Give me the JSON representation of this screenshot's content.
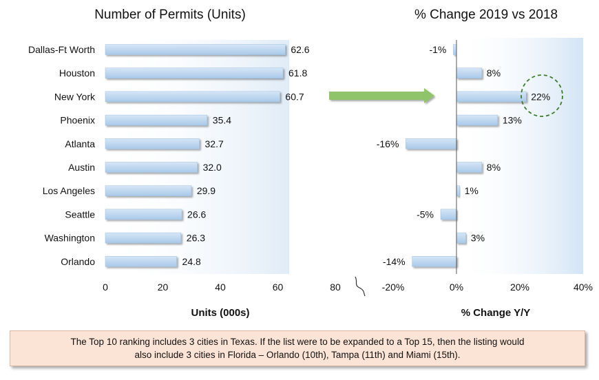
{
  "chart_data": [
    {
      "type": "bar",
      "orientation": "horizontal",
      "title": "Number of Permits (Units)",
      "xlabel": "Units (000s)",
      "categories": [
        "Dallas-Ft Worth",
        "Houston",
        "New York",
        "Phoenix",
        "Atlanta",
        "Austin",
        "Los Angeles",
        "Seattle",
        "Washington",
        "Orlando"
      ],
      "values": [
        62.6,
        61.8,
        60.7,
        35.4,
        32.7,
        32.0,
        29.9,
        26.6,
        26.3,
        24.8
      ],
      "value_labels": [
        "62.6",
        "61.8",
        "60.7",
        "35.4",
        "32.7",
        "32.0",
        "29.9",
        "26.6",
        "26.3",
        "24.8"
      ],
      "xlim": [
        0,
        80
      ],
      "xticks": [
        "0",
        "20",
        "40",
        "60",
        "80"
      ],
      "bar_color": "#bdd7ee"
    },
    {
      "type": "bar",
      "orientation": "horizontal",
      "title": "% Change 2019 vs 2018",
      "xlabel": "% Change Y/Y",
      "categories": [
        "Dallas-Ft Worth",
        "Houston",
        "New York",
        "Phoenix",
        "Atlanta",
        "Austin",
        "Los Angeles",
        "Seattle",
        "Washington",
        "Orlando"
      ],
      "values": [
        -1,
        8,
        22,
        13,
        -16,
        8,
        1,
        -5,
        3,
        -14
      ],
      "value_labels": [
        "-1%",
        "8%",
        "22%",
        "13%",
        "-16%",
        "8%",
        "1%",
        "-5%",
        "3%",
        "-14%"
      ],
      "xlim": [
        -20,
        40
      ],
      "xticks": [
        "-20%",
        "0%",
        "20%",
        "40%"
      ],
      "highlight": "New York",
      "bar_color": "#bdd7ee",
      "arrow_color": "#8fc46a"
    }
  ],
  "note": {
    "line1": "The Top 10 ranking includes 3 cities in Texas. If the list were to be expanded to a Top 15, then the listing would",
    "line2": "also include 3 cities in Florida –  Orlando (10th), Tampa (11th) and Miami (15th)."
  }
}
